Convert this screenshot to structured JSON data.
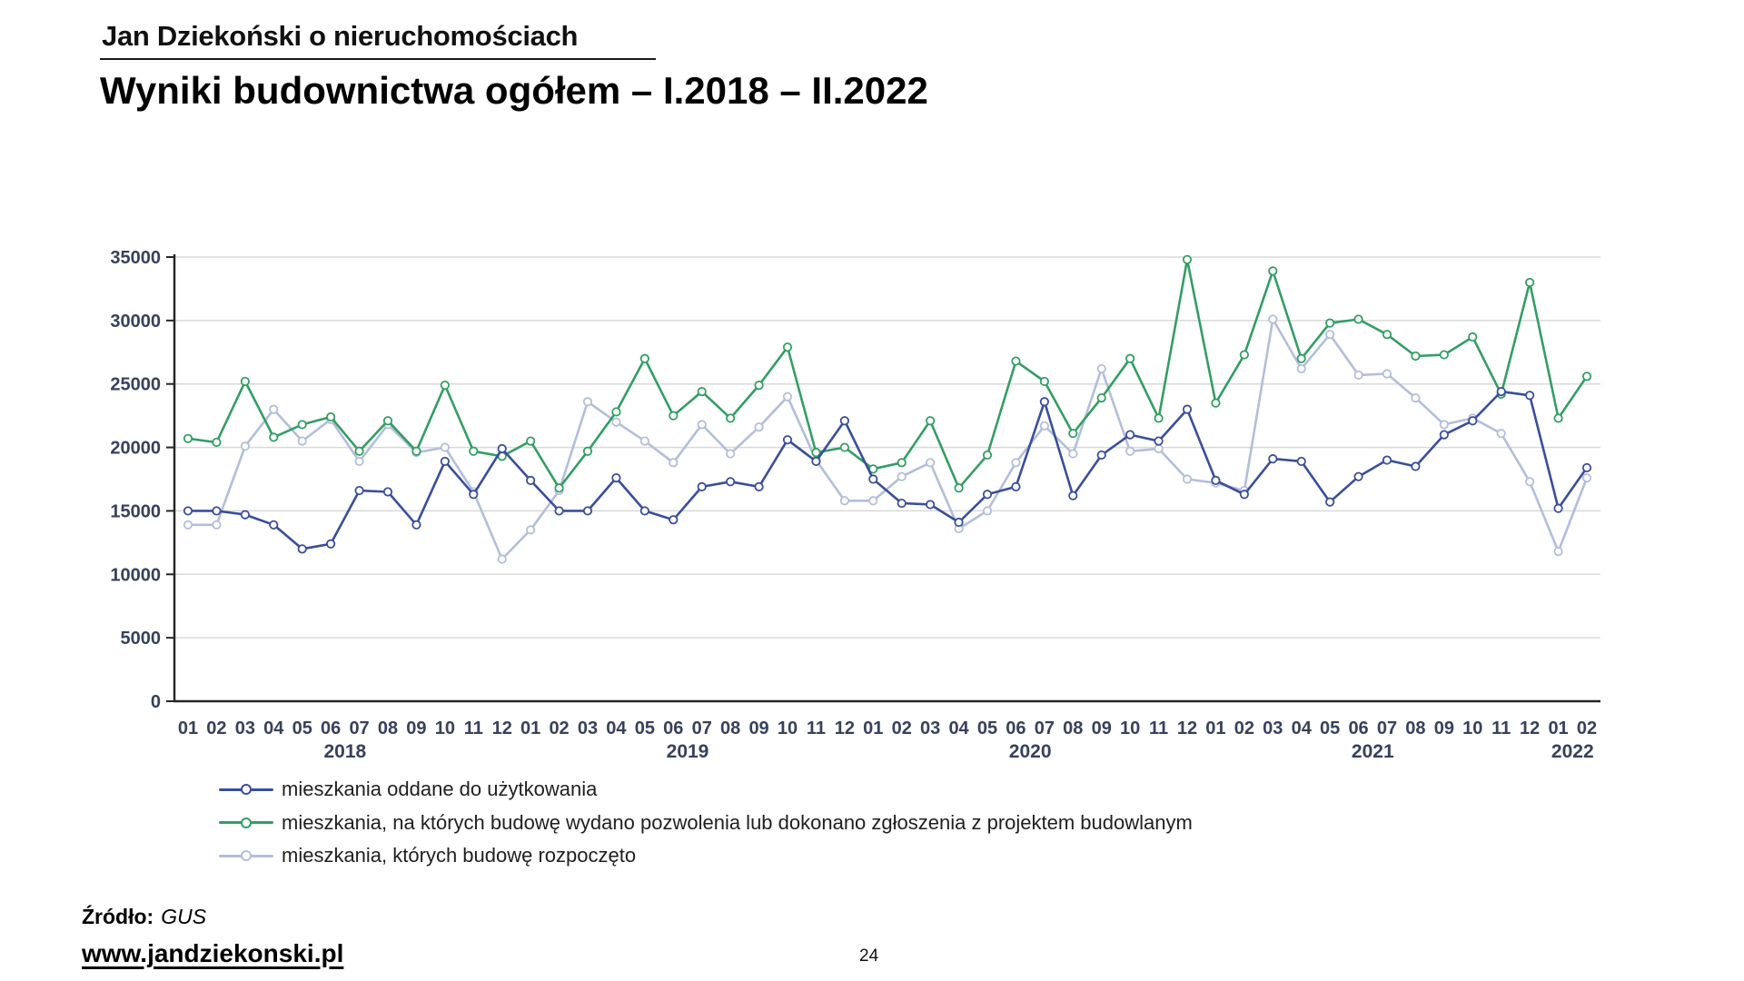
{
  "header": {
    "brand": "Jan Dziekoński o nieruchomościach",
    "title": "Wyniki budownictwa ogółem – I.2018 – II.2022"
  },
  "footer": {
    "source_label": "Źródło:",
    "source_value": "GUS",
    "website": "www.jandziekonski.pl",
    "page_number": "24"
  },
  "chart_data": {
    "type": "line",
    "title": "",
    "xlabel": "",
    "ylabel": "",
    "ylim": [
      0,
      35000
    ],
    "ytick_step": 5000,
    "yticks": [
      "0",
      "5000",
      "10000",
      "15000",
      "20000",
      "25000",
      "30000",
      "35000"
    ],
    "grid": true,
    "legend_position": "bottom-left",
    "axis_color": "#262626",
    "grid_color": "#d9d9d9",
    "tick_label_color": "#37415c",
    "x_months": [
      "01",
      "02",
      "03",
      "04",
      "05",
      "06",
      "07",
      "08",
      "09",
      "10",
      "11",
      "12",
      "01",
      "02",
      "03",
      "04",
      "05",
      "06",
      "07",
      "08",
      "09",
      "10",
      "11",
      "12",
      "01",
      "02",
      "03",
      "04",
      "05",
      "06",
      "07",
      "08",
      "09",
      "10",
      "11",
      "12",
      "01",
      "02",
      "03",
      "04",
      "05",
      "06",
      "07",
      "08",
      "09",
      "10",
      "11",
      "12",
      "01",
      "02"
    ],
    "x_years": [
      {
        "label": "2018",
        "start": 0,
        "span": 12
      },
      {
        "label": "2019",
        "start": 12,
        "span": 12
      },
      {
        "label": "2020",
        "start": 24,
        "span": 12
      },
      {
        "label": "2021",
        "start": 36,
        "span": 12
      },
      {
        "label": "2022",
        "start": 48,
        "span": 2
      }
    ],
    "series": [
      {
        "name": "mieszkania oddane do użytkowania",
        "color": "#3a4e9c",
        "values": [
          15000,
          15000,
          14700,
          13900,
          12000,
          12400,
          16600,
          16500,
          13900,
          18900,
          16300,
          19900,
          17400,
          15000,
          15000,
          17600,
          15000,
          14300,
          16900,
          17300,
          16900,
          20600,
          18900,
          22100,
          17500,
          15600,
          15500,
          14100,
          16300,
          16900,
          23600,
          16200,
          19400,
          21000,
          20500,
          23000,
          17400,
          16300,
          19100,
          18900,
          15700,
          17700,
          19000,
          18500,
          21000,
          22100,
          24400,
          24100,
          15200,
          18400
        ]
      },
      {
        "name": "mieszkania, na których budowę wydano pozwolenia lub dokonano zgłoszenia z projektem budowlanym",
        "color": "#339e63",
        "values": [
          20700,
          20400,
          25200,
          20800,
          21800,
          22400,
          19700,
          22100,
          19700,
          24900,
          19700,
          19300,
          20500,
          16800,
          19700,
          22800,
          27000,
          22500,
          24400,
          22300,
          24900,
          27900,
          19600,
          20000,
          18300,
          18800,
          22100,
          16800,
          19400,
          26800,
          25200,
          21100,
          23900,
          27000,
          22300,
          34800,
          23500,
          27300,
          33900,
          27000,
          29800,
          30100,
          28900,
          27200,
          27300,
          28700,
          24200,
          33000,
          22300,
          25600
        ]
      },
      {
        "name": "mieszkania, których budowę rozpoczęto",
        "color": "#b3bedb",
        "values": [
          13900,
          13900,
          20100,
          23000,
          20500,
          22200,
          18900,
          21800,
          19600,
          20000,
          16500,
          11200,
          13500,
          16600,
          23600,
          22000,
          20500,
          18800,
          21800,
          19500,
          21600,
          24000,
          19000,
          15800,
          15800,
          17700,
          18800,
          13600,
          15000,
          18800,
          21700,
          19500,
          26200,
          19700,
          19900,
          17500,
          17200,
          16600,
          30100,
          26200,
          28900,
          25700,
          25800,
          23900,
          21800,
          22300,
          21100,
          17300,
          11800,
          17600
        ]
      }
    ]
  }
}
